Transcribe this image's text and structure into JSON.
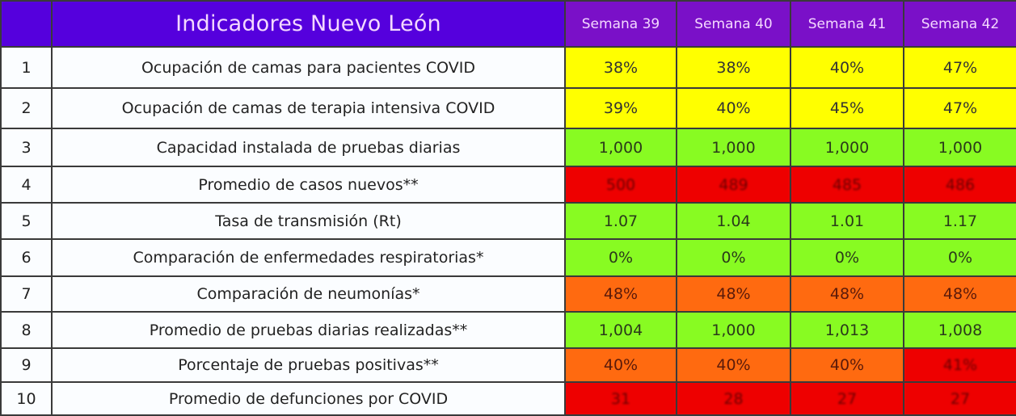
{
  "header": {
    "title": "Indicadores Nuevo León",
    "weeks": [
      "Semana 39",
      "Semana 40",
      "Semana 41",
      "Semana 42"
    ]
  },
  "colors": {
    "title_bg": "#5500dd",
    "week_bg": "#7a10c8",
    "yellow": "#ffff00",
    "green": "#88fb22",
    "orange": "#ff6a10",
    "red": "#ee0000"
  },
  "rows": [
    {
      "num": "1",
      "label": "Ocupación de camas para pacientes COVID",
      "values": [
        "38%",
        "38%",
        "40%",
        "47%"
      ],
      "status": [
        "yellow",
        "yellow",
        "yellow",
        "yellow"
      ]
    },
    {
      "num": "2",
      "label": "Ocupación de camas de terapia intensiva COVID",
      "values": [
        "39%",
        "40%",
        "45%",
        "47%"
      ],
      "status": [
        "yellow",
        "yellow",
        "yellow",
        "yellow"
      ]
    },
    {
      "num": "3",
      "label": "Capacidad instalada de pruebas diarias",
      "values": [
        "1,000",
        "1,000",
        "1,000",
        "1,000"
      ],
      "status": [
        "green",
        "green",
        "green",
        "green"
      ]
    },
    {
      "num": "4",
      "label": "Promedio de casos nuevos**",
      "values": [
        "500",
        "489",
        "485",
        "486"
      ],
      "status": [
        "red",
        "red",
        "red",
        "red"
      ]
    },
    {
      "num": "5",
      "label": "Tasa de transmisión (Rt)",
      "values": [
        "1.07",
        "1.04",
        "1.01",
        "1.17"
      ],
      "status": [
        "green",
        "green",
        "green",
        "green"
      ]
    },
    {
      "num": "6",
      "label": "Comparación de enfermedades respiratorias*",
      "values": [
        "0%",
        "0%",
        "0%",
        "0%"
      ],
      "status": [
        "green",
        "green",
        "green",
        "green"
      ]
    },
    {
      "num": "7",
      "label": "Comparación de neumonías*",
      "values": [
        "48%",
        "48%",
        "48%",
        "48%"
      ],
      "status": [
        "orange",
        "orange",
        "orange",
        "orange"
      ]
    },
    {
      "num": "8",
      "label": "Promedio de pruebas diarias realizadas**",
      "values": [
        "1,004",
        "1,000",
        "1,013",
        "1,008"
      ],
      "status": [
        "green",
        "green",
        "green",
        "green"
      ]
    },
    {
      "num": "9",
      "label": "Porcentaje de pruebas positivas**",
      "values": [
        "40%",
        "40%",
        "40%",
        "41%"
      ],
      "status": [
        "orange",
        "orange",
        "orange",
        "red"
      ]
    },
    {
      "num": "10",
      "label": "Promedio de defunciones por COVID",
      "values": [
        "31",
        "28",
        "27",
        "27"
      ],
      "status": [
        "red",
        "red",
        "red",
        "red"
      ]
    }
  ]
}
